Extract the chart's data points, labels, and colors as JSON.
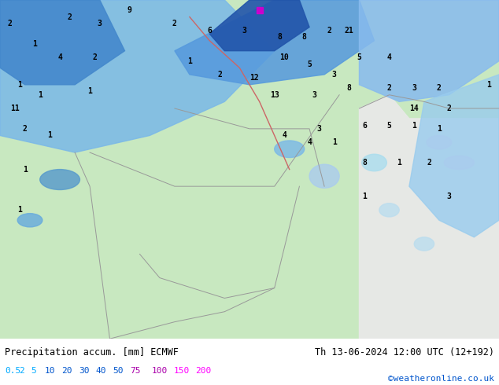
{
  "title_left": "Precipitation accum. [mm] ECMWF",
  "title_right": "Th 13-06-2024 12:00 UTC (12+192)",
  "credit": "©weatheronline.co.uk",
  "colorbar_labels": [
    "0.5",
    "2",
    "5",
    "10",
    "20",
    "30",
    "40",
    "50",
    "75",
    "100",
    "150",
    "200"
  ],
  "colorbar_colors": [
    "#e0f0ff",
    "#b0d8ff",
    "#80b8f0",
    "#5090e0",
    "#2060c8",
    "#1040a0",
    "#082878",
    "#041060",
    "#8000c0",
    "#c000c0",
    "#ff00ff",
    "#ff80ff"
  ],
  "label_colors": [
    "#00aaff",
    "#00aaff",
    "#00aaff",
    "#0000cc",
    "#0000cc",
    "#0000cc",
    "#0000cc",
    "#0000cc",
    "#cc00cc",
    "#cc00cc",
    "#ff00ff",
    "#ff00ff"
  ],
  "background_color": "#aad4a0",
  "map_bg": "#c8e8c0",
  "bottom_bar_color": "#ffffff",
  "fig_width": 6.34,
  "fig_height": 4.9
}
